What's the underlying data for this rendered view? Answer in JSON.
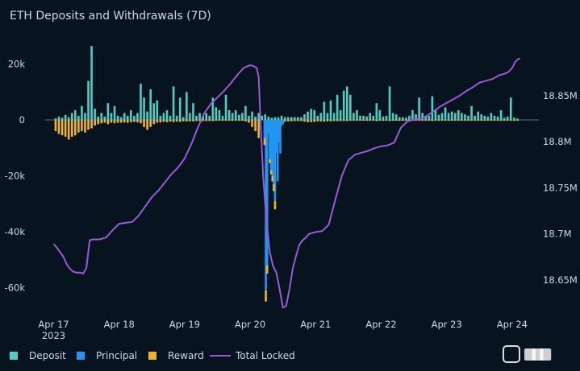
{
  "chart_data": {
    "type": "bar",
    "title": "ETH Deposits and Withdrawals (7D)",
    "colors": {
      "background": "#07141f",
      "text": "#cfd8e0",
      "deposit": "#4ecdc4",
      "principal": "#2196f3",
      "reward": "#f0b429",
      "total_locked": "#9b59d6",
      "zero_line": "#5b6b78"
    },
    "x_axis": {
      "min": 0,
      "max": 7.3,
      "ticks": [
        {
          "value": 0,
          "label": "Apr 17",
          "sublabel": "2023"
        },
        {
          "value": 1,
          "label": "Apr 18"
        },
        {
          "value": 2,
          "label": "Apr 19"
        },
        {
          "value": 3,
          "label": "Apr 20"
        },
        {
          "value": 4,
          "label": "Apr 21"
        },
        {
          "value": 5,
          "label": "Apr 22"
        },
        {
          "value": 6,
          "label": "Apr 23"
        },
        {
          "value": 7,
          "label": "Apr 24"
        }
      ]
    },
    "y_left": {
      "min": -70000,
      "max": 32000,
      "ticks": [
        {
          "value": 20000,
          "label": "20k"
        },
        {
          "value": 0,
          "label": "0"
        },
        {
          "value": -20000,
          "label": "-20k"
        },
        {
          "value": -40000,
          "label": "-40k"
        },
        {
          "value": -60000,
          "label": "-60k"
        }
      ]
    },
    "y_right": {
      "min": 18.6115,
      "max": 18.9205,
      "ticks": [
        {
          "value": 18.85,
          "label": "18.85M"
        },
        {
          "value": 18.8,
          "label": "18.8M"
        },
        {
          "value": 18.75,
          "label": "18.75M"
        },
        {
          "value": 18.7,
          "label": "18.7M"
        },
        {
          "value": 18.65,
          "label": "18.65M"
        }
      ]
    },
    "bar_width": 0.032,
    "deposit": [
      [
        0.03,
        600
      ],
      [
        0.08,
        1200
      ],
      [
        0.13,
        800
      ],
      [
        0.18,
        1800
      ],
      [
        0.23,
        1000
      ],
      [
        0.28,
        2500
      ],
      [
        0.33,
        3500
      ],
      [
        0.38,
        1500
      ],
      [
        0.43,
        5000
      ],
      [
        0.48,
        2500
      ],
      [
        0.53,
        14000
      ],
      [
        0.58,
        26500
      ],
      [
        0.63,
        4000
      ],
      [
        0.68,
        1200
      ],
      [
        0.73,
        2500
      ],
      [
        0.78,
        1200
      ],
      [
        0.83,
        6000
      ],
      [
        0.88,
        2500
      ],
      [
        0.93,
        5000
      ],
      [
        0.98,
        1500
      ],
      [
        1.03,
        1000
      ],
      [
        1.08,
        2500
      ],
      [
        1.13,
        1500
      ],
      [
        1.18,
        3500
      ],
      [
        1.23,
        1500
      ],
      [
        1.28,
        2500
      ],
      [
        1.33,
        13000
      ],
      [
        1.38,
        8000
      ],
      [
        1.43,
        3000
      ],
      [
        1.48,
        11000
      ],
      [
        1.53,
        6000
      ],
      [
        1.58,
        7000
      ],
      [
        1.63,
        1500
      ],
      [
        1.68,
        2500
      ],
      [
        1.73,
        3500
      ],
      [
        1.78,
        1500
      ],
      [
        1.83,
        12000
      ],
      [
        1.88,
        1500
      ],
      [
        1.93,
        8000
      ],
      [
        1.98,
        1000
      ],
      [
        2.03,
        10000
      ],
      [
        2.08,
        2500
      ],
      [
        2.13,
        6000
      ],
      [
        2.18,
        1500
      ],
      [
        2.23,
        2500
      ],
      [
        2.28,
        1500
      ],
      [
        2.33,
        2500
      ],
      [
        2.38,
        1500
      ],
      [
        2.43,
        8000
      ],
      [
        2.48,
        4500
      ],
      [
        2.53,
        3500
      ],
      [
        2.58,
        1500
      ],
      [
        2.63,
        9000
      ],
      [
        2.68,
        3500
      ],
      [
        2.73,
        2500
      ],
      [
        2.78,
        3500
      ],
      [
        2.83,
        1800
      ],
      [
        2.88,
        2500
      ],
      [
        2.93,
        5000
      ],
      [
        2.98,
        1500
      ],
      [
        3.03,
        3000
      ],
      [
        3.08,
        1200
      ],
      [
        3.13,
        2500
      ],
      [
        3.18,
        1500
      ],
      [
        3.23,
        2000
      ],
      [
        3.28,
        1200
      ],
      [
        3.33,
        800
      ],
      [
        3.38,
        1000
      ],
      [
        3.43,
        1000
      ],
      [
        3.48,
        1500
      ],
      [
        3.53,
        1000
      ],
      [
        3.58,
        1000
      ],
      [
        3.63,
        1000
      ],
      [
        3.68,
        1000
      ],
      [
        3.73,
        1000
      ],
      [
        3.78,
        1000
      ],
      [
        3.83,
        2000
      ],
      [
        3.88,
        3000
      ],
      [
        3.93,
        4000
      ],
      [
        3.98,
        3500
      ],
      [
        4.03,
        1500
      ],
      [
        4.08,
        2500
      ],
      [
        4.13,
        6500
      ],
      [
        4.18,
        2500
      ],
      [
        4.23,
        7000
      ],
      [
        4.28,
        2500
      ],
      [
        4.33,
        9000
      ],
      [
        4.38,
        3500
      ],
      [
        4.43,
        10500
      ],
      [
        4.48,
        12000
      ],
      [
        4.53,
        9000
      ],
      [
        4.58,
        2500
      ],
      [
        4.63,
        3500
      ],
      [
        4.68,
        1500
      ],
      [
        4.73,
        1500
      ],
      [
        4.78,
        1200
      ],
      [
        4.83,
        2500
      ],
      [
        4.88,
        1500
      ],
      [
        4.93,
        6000
      ],
      [
        4.98,
        3500
      ],
      [
        5.03,
        1200
      ],
      [
        5.08,
        1500
      ],
      [
        5.13,
        12000
      ],
      [
        5.18,
        2500
      ],
      [
        5.23,
        2000
      ],
      [
        5.28,
        1000
      ],
      [
        5.33,
        1000
      ],
      [
        5.38,
        800
      ],
      [
        5.43,
        1500
      ],
      [
        5.48,
        3500
      ],
      [
        5.53,
        2000
      ],
      [
        5.58,
        8000
      ],
      [
        5.63,
        2500
      ],
      [
        5.68,
        1500
      ],
      [
        5.73,
        1500
      ],
      [
        5.78,
        8500
      ],
      [
        5.83,
        3500
      ],
      [
        5.88,
        1800
      ],
      [
        5.93,
        2500
      ],
      [
        5.98,
        4500
      ],
      [
        6.03,
        2500
      ],
      [
        6.08,
        3000
      ],
      [
        6.13,
        2500
      ],
      [
        6.18,
        3500
      ],
      [
        6.23,
        2500
      ],
      [
        6.28,
        2000
      ],
      [
        6.33,
        1500
      ],
      [
        6.38,
        5000
      ],
      [
        6.43,
        1500
      ],
      [
        6.48,
        3000
      ],
      [
        6.53,
        2000
      ],
      [
        6.58,
        1500
      ],
      [
        6.63,
        1200
      ],
      [
        6.68,
        2500
      ],
      [
        6.73,
        1500
      ],
      [
        6.78,
        1200
      ],
      [
        6.83,
        3500
      ],
      [
        6.88,
        800
      ],
      [
        6.93,
        1200
      ],
      [
        6.98,
        8000
      ],
      [
        7.03,
        800
      ],
      [
        7.08,
        500
      ]
    ],
    "principal": [
      [
        3.22,
        -6500
      ],
      [
        3.24,
        -61000
      ],
      [
        3.26,
        -52000
      ],
      [
        3.28,
        -5000
      ],
      [
        3.3,
        -14000
      ],
      [
        3.32,
        -18000
      ],
      [
        3.34,
        -20000
      ],
      [
        3.36,
        -23000
      ],
      [
        3.38,
        -29000
      ],
      [
        3.4,
        -12000
      ],
      [
        3.42,
        -22000
      ],
      [
        3.44,
        -8000
      ],
      [
        3.46,
        -12000
      ],
      [
        3.48,
        -2000
      ],
      [
        3.5,
        -1500
      ]
    ],
    "reward": [
      [
        0.03,
        -4000
      ],
      [
        0.08,
        -5000
      ],
      [
        0.13,
        -5500
      ],
      [
        0.18,
        -6000
      ],
      [
        0.23,
        -7000
      ],
      [
        0.28,
        -6000
      ],
      [
        0.33,
        -5500
      ],
      [
        0.38,
        -4500
      ],
      [
        0.43,
        -4000
      ],
      [
        0.48,
        -4500
      ],
      [
        0.53,
        -3500
      ],
      [
        0.58,
        -3000
      ],
      [
        0.63,
        -2000
      ],
      [
        0.68,
        -1500
      ],
      [
        0.73,
        -1200
      ],
      [
        0.78,
        -1000
      ],
      [
        0.83,
        -1500
      ],
      [
        0.88,
        -1000
      ],
      [
        0.93,
        -1200
      ],
      [
        0.98,
        -1000
      ],
      [
        1.03,
        -1000
      ],
      [
        1.08,
        -900
      ],
      [
        1.13,
        -1000
      ],
      [
        1.18,
        -800
      ],
      [
        1.23,
        -700
      ],
      [
        1.28,
        -900
      ],
      [
        1.33,
        -1200
      ],
      [
        1.38,
        -2500
      ],
      [
        1.43,
        -3500
      ],
      [
        1.48,
        -2500
      ],
      [
        1.53,
        -1500
      ],
      [
        1.58,
        -1000
      ],
      [
        1.63,
        -900
      ],
      [
        1.68,
        -700
      ],
      [
        1.73,
        -800
      ],
      [
        1.78,
        -600
      ],
      [
        1.83,
        -800
      ],
      [
        1.88,
        -600
      ],
      [
        1.93,
        -700
      ],
      [
        1.98,
        -500
      ],
      [
        2.03,
        -500
      ],
      [
        2.08,
        -500
      ],
      [
        2.13,
        -500
      ],
      [
        2.18,
        -400
      ],
      [
        2.23,
        -400
      ],
      [
        2.28,
        -400
      ],
      [
        2.33,
        -400
      ],
      [
        2.38,
        -400
      ],
      [
        2.43,
        -400
      ],
      [
        2.48,
        -300
      ],
      [
        2.53,
        -300
      ],
      [
        2.58,
        -300
      ],
      [
        2.63,
        -300
      ],
      [
        2.68,
        -300
      ],
      [
        2.73,
        -300
      ],
      [
        2.78,
        -300
      ],
      [
        2.83,
        -300
      ],
      [
        2.88,
        -300
      ],
      [
        2.93,
        -500
      ],
      [
        2.98,
        -1000
      ],
      [
        3.03,
        -2500
      ],
      [
        3.08,
        -4000
      ],
      [
        3.13,
        -6500
      ],
      [
        3.22,
        -2500
      ],
      [
        3.24,
        -4000
      ],
      [
        3.26,
        -3000
      ],
      [
        3.3,
        -1500
      ],
      [
        3.32,
        -1500
      ],
      [
        3.34,
        -2000
      ],
      [
        3.36,
        -2500
      ],
      [
        3.38,
        -3000
      ],
      [
        3.53,
        -600
      ],
      [
        3.58,
        -500
      ],
      [
        3.63,
        -500
      ],
      [
        3.68,
        -400
      ],
      [
        3.73,
        -400
      ],
      [
        3.78,
        -400
      ],
      [
        3.83,
        -600
      ],
      [
        3.88,
        -800
      ],
      [
        3.93,
        -800
      ],
      [
        3.98,
        -700
      ],
      [
        4.03,
        -500
      ],
      [
        4.08,
        -500
      ],
      [
        4.13,
        -600
      ],
      [
        4.18,
        -500
      ],
      [
        4.23,
        -500
      ],
      [
        4.28,
        -400
      ],
      [
        4.33,
        -400
      ],
      [
        4.38,
        -400
      ],
      [
        4.43,
        -400
      ],
      [
        4.48,
        -400
      ],
      [
        4.53,
        -300
      ],
      [
        4.58,
        -300
      ],
      [
        4.63,
        -300
      ],
      [
        4.68,
        -300
      ],
      [
        4.73,
        -300
      ],
      [
        4.78,
        -300
      ],
      [
        4.83,
        -300
      ],
      [
        4.88,
        -300
      ],
      [
        4.93,
        -400
      ],
      [
        4.98,
        -300
      ],
      [
        5.03,
        -300
      ],
      [
        5.08,
        -300
      ],
      [
        5.13,
        -400
      ],
      [
        5.18,
        -300
      ],
      [
        5.23,
        -300
      ],
      [
        5.28,
        -300
      ],
      [
        5.33,
        -300
      ],
      [
        5.38,
        -300
      ],
      [
        5.43,
        -400
      ],
      [
        5.48,
        -300
      ],
      [
        5.53,
        -300
      ],
      [
        5.58,
        -300
      ],
      [
        5.63,
        -300
      ],
      [
        5.68,
        -300
      ],
      [
        5.73,
        -300
      ],
      [
        5.78,
        -400
      ],
      [
        5.83,
        -300
      ],
      [
        5.88,
        -300
      ],
      [
        5.93,
        -300
      ],
      [
        5.98,
        -300
      ],
      [
        6.03,
        -300
      ],
      [
        6.08,
        -300
      ],
      [
        6.13,
        -300
      ],
      [
        6.18,
        -300
      ],
      [
        6.23,
        -300
      ],
      [
        6.28,
        -300
      ],
      [
        6.33,
        -300
      ],
      [
        6.38,
        -300
      ],
      [
        6.43,
        -300
      ],
      [
        6.48,
        -300
      ],
      [
        6.53,
        -300
      ],
      [
        6.58,
        -300
      ],
      [
        6.63,
        -300
      ],
      [
        6.68,
        -300
      ],
      [
        6.73,
        -300
      ],
      [
        6.78,
        -300
      ],
      [
        6.83,
        -300
      ],
      [
        6.88,
        -300
      ],
      [
        6.93,
        -300
      ],
      [
        6.98,
        -300
      ],
      [
        7.03,
        -300
      ],
      [
        7.08,
        -300
      ]
    ],
    "total_locked": [
      [
        0.0,
        18.689
      ],
      [
        0.05,
        18.685
      ],
      [
        0.1,
        18.68
      ],
      [
        0.15,
        18.675
      ],
      [
        0.2,
        18.667
      ],
      [
        0.25,
        18.662
      ],
      [
        0.3,
        18.659
      ],
      [
        0.35,
        18.658
      ],
      [
        0.4,
        18.658
      ],
      [
        0.45,
        18.657
      ],
      [
        0.5,
        18.663
      ],
      [
        0.55,
        18.693
      ],
      [
        0.6,
        18.694
      ],
      [
        0.7,
        18.694
      ],
      [
        0.8,
        18.696
      ],
      [
        0.9,
        18.704
      ],
      [
        1.0,
        18.711
      ],
      [
        1.1,
        18.712
      ],
      [
        1.2,
        18.713
      ],
      [
        1.3,
        18.72
      ],
      [
        1.4,
        18.73
      ],
      [
        1.5,
        18.74
      ],
      [
        1.6,
        18.747
      ],
      [
        1.7,
        18.756
      ],
      [
        1.8,
        18.765
      ],
      [
        1.9,
        18.772
      ],
      [
        2.0,
        18.782
      ],
      [
        2.1,
        18.797
      ],
      [
        2.2,
        18.815
      ],
      [
        2.3,
        18.831
      ],
      [
        2.4,
        18.841
      ],
      [
        2.5,
        18.848
      ],
      [
        2.6,
        18.855
      ],
      [
        2.7,
        18.863
      ],
      [
        2.8,
        18.872
      ],
      [
        2.9,
        18.88
      ],
      [
        3.0,
        18.883
      ],
      [
        3.05,
        18.882
      ],
      [
        3.1,
        18.88
      ],
      [
        3.13,
        18.87
      ],
      [
        3.16,
        18.82
      ],
      [
        3.2,
        18.76
      ],
      [
        3.25,
        18.715
      ],
      [
        3.3,
        18.68
      ],
      [
        3.35,
        18.665
      ],
      [
        3.4,
        18.658
      ],
      [
        3.45,
        18.64
      ],
      [
        3.5,
        18.62
      ],
      [
        3.55,
        18.622
      ],
      [
        3.6,
        18.64
      ],
      [
        3.65,
        18.662
      ],
      [
        3.7,
        18.676
      ],
      [
        3.75,
        18.688
      ],
      [
        3.8,
        18.693
      ],
      [
        3.85,
        18.696
      ],
      [
        3.9,
        18.7
      ],
      [
        4.0,
        18.702
      ],
      [
        4.1,
        18.703
      ],
      [
        4.2,
        18.71
      ],
      [
        4.3,
        18.737
      ],
      [
        4.4,
        18.763
      ],
      [
        4.5,
        18.78
      ],
      [
        4.6,
        18.786
      ],
      [
        4.7,
        18.788
      ],
      [
        4.8,
        18.79
      ],
      [
        4.9,
        18.793
      ],
      [
        5.0,
        18.795
      ],
      [
        5.1,
        18.796
      ],
      [
        5.2,
        18.799
      ],
      [
        5.3,
        18.815
      ],
      [
        5.4,
        18.822
      ],
      [
        5.5,
        18.824
      ],
      [
        5.6,
        18.825
      ],
      [
        5.7,
        18.828
      ],
      [
        5.8,
        18.833
      ],
      [
        5.9,
        18.838
      ],
      [
        6.0,
        18.842
      ],
      [
        6.1,
        18.846
      ],
      [
        6.2,
        18.85
      ],
      [
        6.3,
        18.855
      ],
      [
        6.4,
        18.859
      ],
      [
        6.5,
        18.864
      ],
      [
        6.6,
        18.866
      ],
      [
        6.7,
        18.868
      ],
      [
        6.8,
        18.872
      ],
      [
        6.9,
        18.874
      ],
      [
        6.95,
        18.876
      ],
      [
        7.0,
        18.88
      ],
      [
        7.05,
        18.887
      ],
      [
        7.1,
        18.89
      ],
      [
        7.12,
        18.89
      ]
    ],
    "legend": [
      {
        "key": "deposit",
        "label": "Deposit",
        "kind": "square"
      },
      {
        "key": "principal",
        "label": "Principal",
        "kind": "square"
      },
      {
        "key": "reward",
        "label": "Reward",
        "kind": "square"
      },
      {
        "key": "total_locked",
        "label": "Total Locked",
        "kind": "line"
      }
    ]
  }
}
